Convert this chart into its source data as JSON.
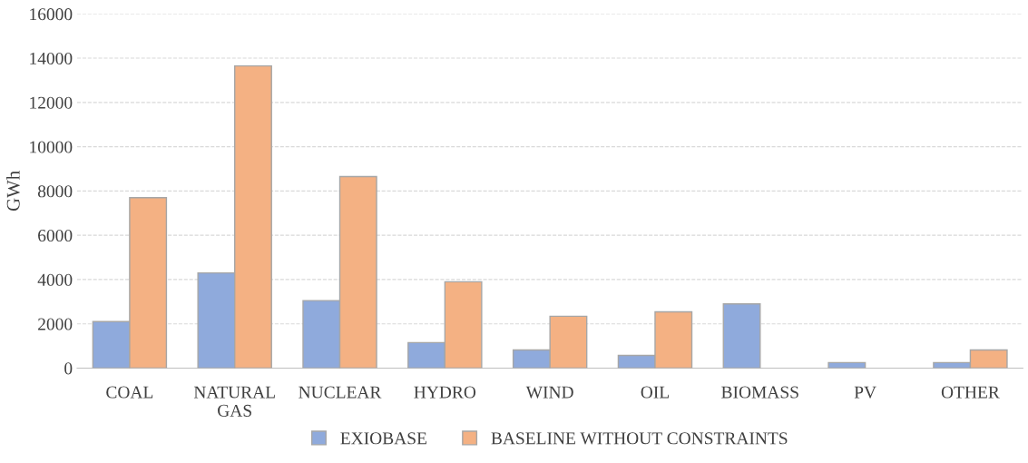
{
  "chart_data": {
    "type": "bar",
    "ylabel": "GWh",
    "categories": [
      "COAL",
      "NATURAL GAS",
      "NUCLEAR",
      "HYDRO",
      "WIND",
      "OIL",
      "BIOMASS",
      "PV",
      "OTHER"
    ],
    "series": [
      {
        "name": "EXIOBASE",
        "color": "#8faadc",
        "values": [
          2100,
          4300,
          3050,
          1150,
          820,
          570,
          2900,
          250,
          250
        ]
      },
      {
        "name": "BASELINE WITHOUT CONSTRAINTS",
        "color": "#f4b183",
        "values": [
          7700,
          13650,
          8650,
          3900,
          2340,
          2540,
          null,
          null,
          820
        ]
      }
    ],
    "ylim": [
      0,
      16000
    ],
    "yticks": [
      0,
      2000,
      4000,
      6000,
      8000,
      10000,
      12000,
      14000,
      16000
    ],
    "grid": "y",
    "legend": "bottom"
  }
}
